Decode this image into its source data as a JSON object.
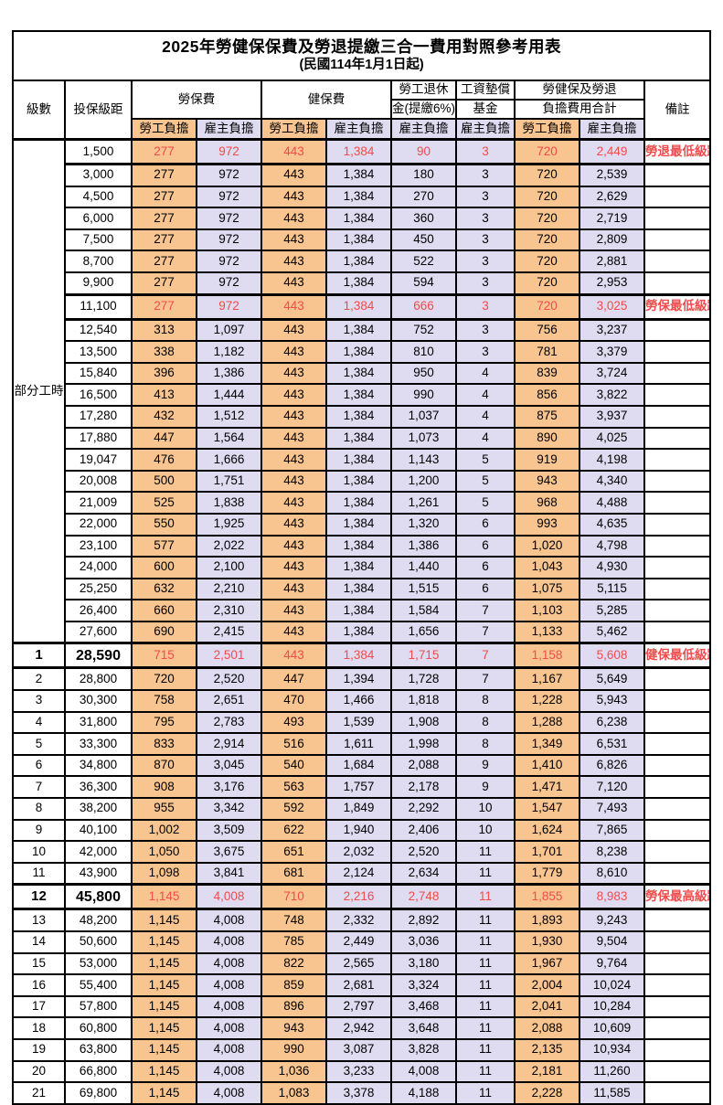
{
  "title": "2025年勞健保保費及勞退提繳三合一費用對照參考用表",
  "subtitle": "(民國114年1月1日起)",
  "colors": {
    "employee_share_bg": "#F8C48F",
    "employer_share_bg": "#DFDBF0",
    "highlight_text": "#F14B4B",
    "border": "#000000"
  },
  "header": {
    "level": "級數",
    "bracket": "投保級距",
    "labor_insurance": "勞保費",
    "health_insurance": "健保費",
    "pension_line1": "勞工退休",
    "pension_line2": "金(提繳6%)",
    "wage_fund_line1": "工資墊償",
    "wage_fund_line2": "基金",
    "total_line1": "勞健保及勞退",
    "total_line2": "負擔費用合計",
    "remark": "備註",
    "employee_share": "勞工負擔",
    "employer_share": "雇主負擔"
  },
  "group": {
    "label": "部分工時",
    "span": 23
  },
  "rows": [
    {
      "level": "",
      "bracket": "1,500",
      "values": [
        "277",
        "972",
        "443",
        "1,384",
        "90",
        "3",
        "720",
        "2,449"
      ],
      "remark": "勞退最低級距",
      "hl": true,
      "emph": false
    },
    {
      "level": "",
      "bracket": "3,000",
      "values": [
        "277",
        "972",
        "443",
        "1,384",
        "180",
        "3",
        "720",
        "2,539"
      ],
      "remark": "",
      "hl": false,
      "emph": false
    },
    {
      "level": "",
      "bracket": "4,500",
      "values": [
        "277",
        "972",
        "443",
        "1,384",
        "270",
        "3",
        "720",
        "2,629"
      ],
      "remark": "",
      "hl": false,
      "emph": false
    },
    {
      "level": "",
      "bracket": "6,000",
      "values": [
        "277",
        "972",
        "443",
        "1,384",
        "360",
        "3",
        "720",
        "2,719"
      ],
      "remark": "",
      "hl": false,
      "emph": false
    },
    {
      "level": "",
      "bracket": "7,500",
      "values": [
        "277",
        "972",
        "443",
        "1,384",
        "450",
        "3",
        "720",
        "2,809"
      ],
      "remark": "",
      "hl": false,
      "emph": false
    },
    {
      "level": "",
      "bracket": "8,700",
      "values": [
        "277",
        "972",
        "443",
        "1,384",
        "522",
        "3",
        "720",
        "2,881"
      ],
      "remark": "",
      "hl": false,
      "emph": false
    },
    {
      "level": "",
      "bracket": "9,900",
      "values": [
        "277",
        "972",
        "443",
        "1,384",
        "594",
        "3",
        "720",
        "2,953"
      ],
      "remark": "",
      "hl": false,
      "emph": false
    },
    {
      "level": "",
      "bracket": "11,100",
      "values": [
        "277",
        "972",
        "443",
        "1,384",
        "666",
        "3",
        "720",
        "3,025"
      ],
      "remark": "勞保最低級距",
      "hl": true,
      "emph": false
    },
    {
      "level": "",
      "bracket": "12,540",
      "values": [
        "313",
        "1,097",
        "443",
        "1,384",
        "752",
        "3",
        "756",
        "3,237"
      ],
      "remark": "",
      "hl": false,
      "emph": false
    },
    {
      "level": "",
      "bracket": "13,500",
      "values": [
        "338",
        "1,182",
        "443",
        "1,384",
        "810",
        "3",
        "781",
        "3,379"
      ],
      "remark": "",
      "hl": false,
      "emph": false
    },
    {
      "level": "",
      "bracket": "15,840",
      "values": [
        "396",
        "1,386",
        "443",
        "1,384",
        "950",
        "4",
        "839",
        "3,724"
      ],
      "remark": "",
      "hl": false,
      "emph": false
    },
    {
      "level": "",
      "bracket": "16,500",
      "values": [
        "413",
        "1,444",
        "443",
        "1,384",
        "990",
        "4",
        "856",
        "3,822"
      ],
      "remark": "",
      "hl": false,
      "emph": false
    },
    {
      "level": "",
      "bracket": "17,280",
      "values": [
        "432",
        "1,512",
        "443",
        "1,384",
        "1,037",
        "4",
        "875",
        "3,937"
      ],
      "remark": "",
      "hl": false,
      "emph": false
    },
    {
      "level": "",
      "bracket": "17,880",
      "values": [
        "447",
        "1,564",
        "443",
        "1,384",
        "1,073",
        "4",
        "890",
        "4,025"
      ],
      "remark": "",
      "hl": false,
      "emph": false
    },
    {
      "level": "",
      "bracket": "19,047",
      "values": [
        "476",
        "1,666",
        "443",
        "1,384",
        "1,143",
        "5",
        "919",
        "4,198"
      ],
      "remark": "",
      "hl": false,
      "emph": false
    },
    {
      "level": "",
      "bracket": "20,008",
      "values": [
        "500",
        "1,751",
        "443",
        "1,384",
        "1,200",
        "5",
        "943",
        "4,340"
      ],
      "remark": "",
      "hl": false,
      "emph": false
    },
    {
      "level": "",
      "bracket": "21,009",
      "values": [
        "525",
        "1,838",
        "443",
        "1,384",
        "1,261",
        "5",
        "968",
        "4,488"
      ],
      "remark": "",
      "hl": false,
      "emph": false
    },
    {
      "level": "",
      "bracket": "22,000",
      "values": [
        "550",
        "1,925",
        "443",
        "1,384",
        "1,320",
        "6",
        "993",
        "4,635"
      ],
      "remark": "",
      "hl": false,
      "emph": false
    },
    {
      "level": "",
      "bracket": "23,100",
      "values": [
        "577",
        "2,022",
        "443",
        "1,384",
        "1,386",
        "6",
        "1,020",
        "4,798"
      ],
      "remark": "",
      "hl": false,
      "emph": false
    },
    {
      "level": "",
      "bracket": "24,000",
      "values": [
        "600",
        "2,100",
        "443",
        "1,384",
        "1,440",
        "6",
        "1,043",
        "4,930"
      ],
      "remark": "",
      "hl": false,
      "emph": false
    },
    {
      "level": "",
      "bracket": "25,250",
      "values": [
        "632",
        "2,210",
        "443",
        "1,384",
        "1,515",
        "6",
        "1,075",
        "5,115"
      ],
      "remark": "",
      "hl": false,
      "emph": false
    },
    {
      "level": "",
      "bracket": "26,400",
      "values": [
        "660",
        "2,310",
        "443",
        "1,384",
        "1,584",
        "7",
        "1,103",
        "5,285"
      ],
      "remark": "",
      "hl": false,
      "emph": false
    },
    {
      "level": "",
      "bracket": "27,600",
      "values": [
        "690",
        "2,415",
        "443",
        "1,384",
        "1,656",
        "7",
        "1,133",
        "5,462"
      ],
      "remark": "",
      "hl": false,
      "emph": false
    },
    {
      "level": "1",
      "bracket": "28,590",
      "values": [
        "715",
        "2,501",
        "443",
        "1,384",
        "1,715",
        "7",
        "1,158",
        "5,608"
      ],
      "remark": "健保最低級距",
      "hl": true,
      "emph": true
    },
    {
      "level": "2",
      "bracket": "28,800",
      "values": [
        "720",
        "2,520",
        "447",
        "1,394",
        "1,728",
        "7",
        "1,167",
        "5,649"
      ],
      "remark": "",
      "hl": false,
      "emph": false
    },
    {
      "level": "3",
      "bracket": "30,300",
      "values": [
        "758",
        "2,651",
        "470",
        "1,466",
        "1,818",
        "8",
        "1,228",
        "5,943"
      ],
      "remark": "",
      "hl": false,
      "emph": false
    },
    {
      "level": "4",
      "bracket": "31,800",
      "values": [
        "795",
        "2,783",
        "493",
        "1,539",
        "1,908",
        "8",
        "1,288",
        "6,238"
      ],
      "remark": "",
      "hl": false,
      "emph": false
    },
    {
      "level": "5",
      "bracket": "33,300",
      "values": [
        "833",
        "2,914",
        "516",
        "1,611",
        "1,998",
        "8",
        "1,349",
        "6,531"
      ],
      "remark": "",
      "hl": false,
      "emph": false
    },
    {
      "level": "6",
      "bracket": "34,800",
      "values": [
        "870",
        "3,045",
        "540",
        "1,684",
        "2,088",
        "9",
        "1,410",
        "6,826"
      ],
      "remark": "",
      "hl": false,
      "emph": false
    },
    {
      "level": "7",
      "bracket": "36,300",
      "values": [
        "908",
        "3,176",
        "563",
        "1,757",
        "2,178",
        "9",
        "1,471",
        "7,120"
      ],
      "remark": "",
      "hl": false,
      "emph": false
    },
    {
      "level": "8",
      "bracket": "38,200",
      "values": [
        "955",
        "3,342",
        "592",
        "1,849",
        "2,292",
        "10",
        "1,547",
        "7,493"
      ],
      "remark": "",
      "hl": false,
      "emph": false
    },
    {
      "level": "9",
      "bracket": "40,100",
      "values": [
        "1,002",
        "3,509",
        "622",
        "1,940",
        "2,406",
        "10",
        "1,624",
        "7,865"
      ],
      "remark": "",
      "hl": false,
      "emph": false
    },
    {
      "level": "10",
      "bracket": "42,000",
      "values": [
        "1,050",
        "3,675",
        "651",
        "2,032",
        "2,520",
        "11",
        "1,701",
        "8,238"
      ],
      "remark": "",
      "hl": false,
      "emph": false
    },
    {
      "level": "11",
      "bracket": "43,900",
      "values": [
        "1,098",
        "3,841",
        "681",
        "2,124",
        "2,634",
        "11",
        "1,779",
        "8,610"
      ],
      "remark": "",
      "hl": false,
      "emph": false
    },
    {
      "level": "12",
      "bracket": "45,800",
      "values": [
        "1,145",
        "4,008",
        "710",
        "2,216",
        "2,748",
        "11",
        "1,855",
        "8,983"
      ],
      "remark": "勞保最高級距",
      "hl": true,
      "emph": true
    },
    {
      "level": "13",
      "bracket": "48,200",
      "values": [
        "1,145",
        "4,008",
        "748",
        "2,332",
        "2,892",
        "11",
        "1,893",
        "9,243"
      ],
      "remark": "",
      "hl": false,
      "emph": false
    },
    {
      "level": "14",
      "bracket": "50,600",
      "values": [
        "1,145",
        "4,008",
        "785",
        "2,449",
        "3,036",
        "11",
        "1,930",
        "9,504"
      ],
      "remark": "",
      "hl": false,
      "emph": false
    },
    {
      "level": "15",
      "bracket": "53,000",
      "values": [
        "1,145",
        "4,008",
        "822",
        "2,565",
        "3,180",
        "11",
        "1,967",
        "9,764"
      ],
      "remark": "",
      "hl": false,
      "emph": false
    },
    {
      "level": "16",
      "bracket": "55,400",
      "values": [
        "1,145",
        "4,008",
        "859",
        "2,681",
        "3,324",
        "11",
        "2,004",
        "10,024"
      ],
      "remark": "",
      "hl": false,
      "emph": false
    },
    {
      "level": "17",
      "bracket": "57,800",
      "values": [
        "1,145",
        "4,008",
        "896",
        "2,797",
        "3,468",
        "11",
        "2,041",
        "10,284"
      ],
      "remark": "",
      "hl": false,
      "emph": false
    },
    {
      "level": "18",
      "bracket": "60,800",
      "values": [
        "1,145",
        "4,008",
        "943",
        "2,942",
        "3,648",
        "11",
        "2,088",
        "10,609"
      ],
      "remark": "",
      "hl": false,
      "emph": false
    },
    {
      "level": "19",
      "bracket": "63,800",
      "values": [
        "1,145",
        "4,008",
        "990",
        "3,087",
        "3,828",
        "11",
        "2,135",
        "10,934"
      ],
      "remark": "",
      "hl": false,
      "emph": false
    },
    {
      "level": "20",
      "bracket": "66,800",
      "values": [
        "1,145",
        "4,008",
        "1,036",
        "3,233",
        "4,008",
        "11",
        "2,181",
        "11,260"
      ],
      "remark": "",
      "hl": false,
      "emph": false
    },
    {
      "level": "21",
      "bracket": "69,800",
      "values": [
        "1,145",
        "4,008",
        "1,083",
        "3,378",
        "4,188",
        "11",
        "2,228",
        "11,585"
      ],
      "remark": "",
      "hl": false,
      "emph": false
    }
  ]
}
